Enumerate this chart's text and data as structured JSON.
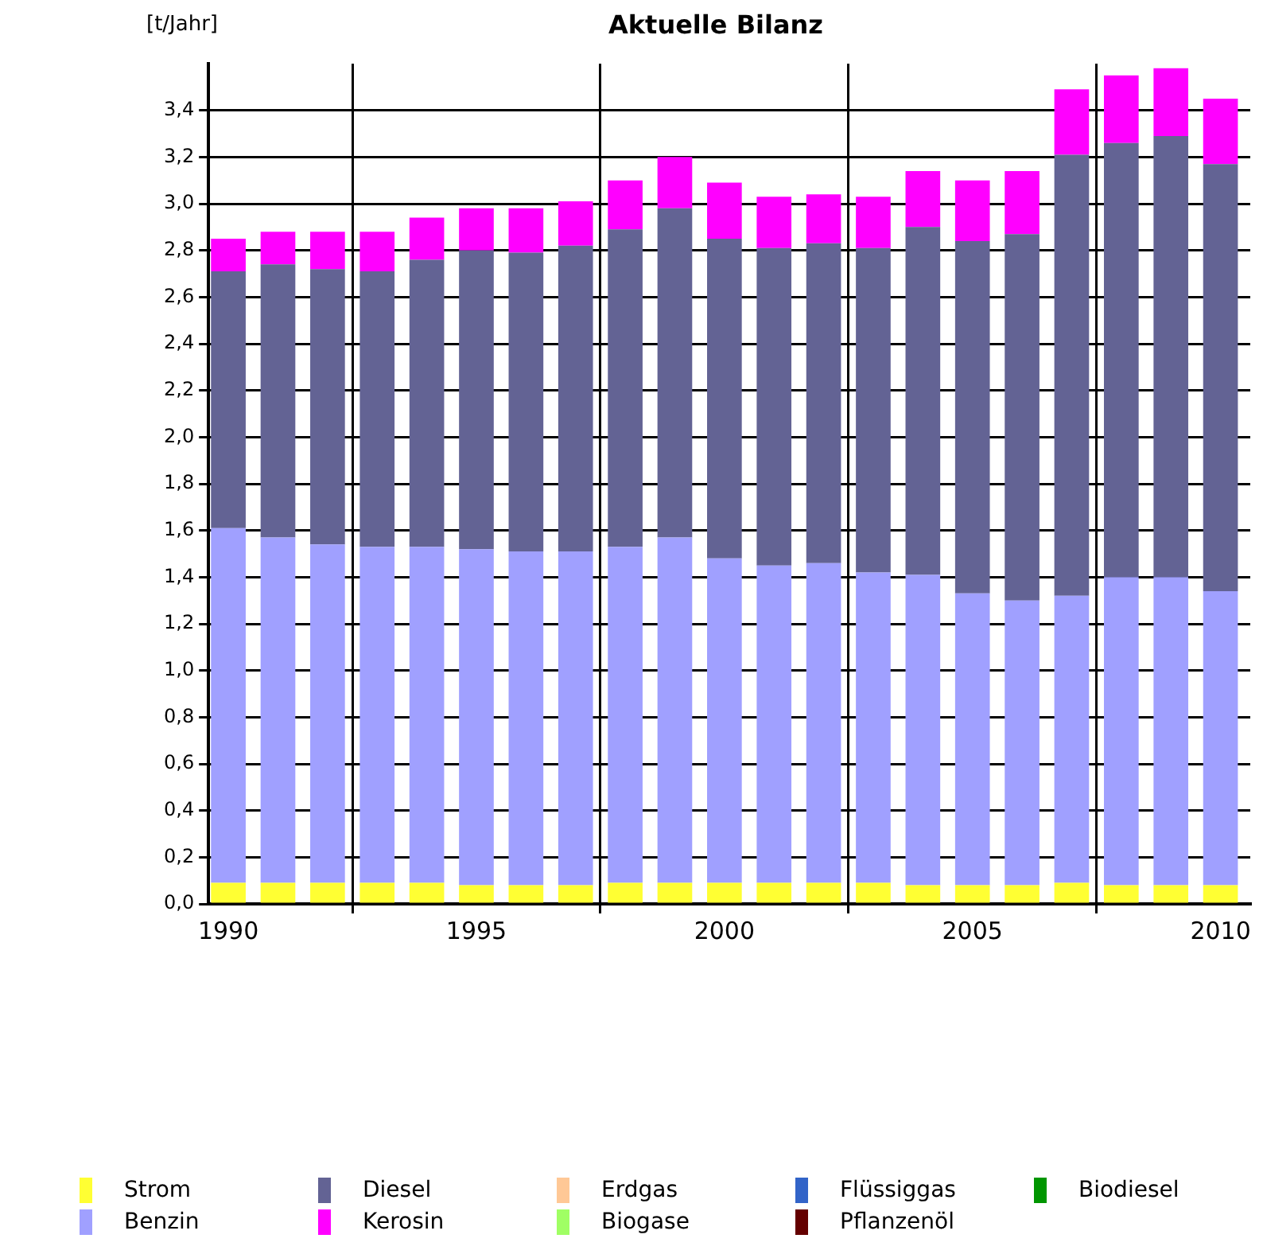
{
  "chart_data": {
    "type": "bar",
    "title": "Aktuelle Bilanz",
    "ylabel": "[t/Jahr]",
    "stacked": true,
    "x": [
      1990,
      1991,
      1992,
      1993,
      1994,
      1995,
      1996,
      1997,
      1998,
      1999,
      2000,
      2001,
      2002,
      2003,
      2004,
      2005,
      2006,
      2007,
      2008,
      2009,
      2010
    ],
    "xlim": [
      1989.6,
      2010.6
    ],
    "xticks": [
      1990,
      1995,
      2000,
      2005,
      2010
    ],
    "ylim": [
      0,
      3.6
    ],
    "yticks": [
      {
        "value": 0,
        "label": "0,0"
      },
      {
        "value": 0.2,
        "label": "0,2"
      },
      {
        "value": 0.4,
        "label": "0,4"
      },
      {
        "value": 0.6,
        "label": "0,6"
      },
      {
        "value": 0.8,
        "label": "0,8"
      },
      {
        "value": 1,
        "label": "1,0"
      },
      {
        "value": 1.2,
        "label": "1,2"
      },
      {
        "value": 1.4,
        "label": "1,4"
      },
      {
        "value": 1.6,
        "label": "1,6"
      },
      {
        "value": 1.8,
        "label": "1,8"
      },
      {
        "value": 2,
        "label": "2,0"
      },
      {
        "value": 2.2,
        "label": "2,2"
      },
      {
        "value": 2.4,
        "label": "2,4"
      },
      {
        "value": 2.6,
        "label": "2,6"
      },
      {
        "value": 2.8,
        "label": "2,8"
      },
      {
        "value": 3,
        "label": "3,0"
      },
      {
        "value": 3.2,
        "label": "3,2"
      },
      {
        "value": 3.4,
        "label": "3,4"
      }
    ],
    "grid": true,
    "legend": "bottom",
    "series": [
      {
        "name": "Strom",
        "color": "#ffff33",
        "values": [
          0.09,
          0.09,
          0.09,
          0.09,
          0.09,
          0.08,
          0.08,
          0.08,
          0.09,
          0.09,
          0.09,
          0.09,
          0.09,
          0.09,
          0.08,
          0.08,
          0.08,
          0.09,
          0.08,
          0.08,
          0.08
        ]
      },
      {
        "name": "Benzin",
        "color": "#a0a0ff",
        "values": [
          1.52,
          1.48,
          1.45,
          1.44,
          1.44,
          1.44,
          1.43,
          1.43,
          1.44,
          1.48,
          1.39,
          1.36,
          1.37,
          1.33,
          1.33,
          1.25,
          1.22,
          1.23,
          1.32,
          1.32,
          1.26
        ]
      },
      {
        "name": "Diesel",
        "color": "#636394",
        "values": [
          1.1,
          1.17,
          1.18,
          1.18,
          1.23,
          1.28,
          1.28,
          1.31,
          1.36,
          1.41,
          1.37,
          1.36,
          1.37,
          1.39,
          1.49,
          1.51,
          1.57,
          1.89,
          1.86,
          1.89,
          1.83
        ]
      },
      {
        "name": "Kerosin",
        "color": "#ff00ff",
        "values": [
          0.14,
          0.14,
          0.16,
          0.17,
          0.18,
          0.18,
          0.19,
          0.19,
          0.21,
          0.22,
          0.24,
          0.22,
          0.21,
          0.22,
          0.24,
          0.26,
          0.27,
          0.28,
          0.29,
          0.29,
          0.28
        ]
      },
      {
        "name": "Erdgas",
        "color": "#ffc896",
        "values": [
          0,
          0,
          0,
          0,
          0,
          0,
          0,
          0,
          0,
          0,
          0,
          0,
          0,
          0,
          0,
          0,
          0,
          0,
          0,
          0,
          0
        ]
      },
      {
        "name": "Biogase",
        "color": "#a0ff64",
        "values": [
          0,
          0,
          0,
          0,
          0,
          0,
          0,
          0,
          0,
          0,
          0,
          0,
          0,
          0,
          0,
          0,
          0,
          0,
          0,
          0,
          0
        ]
      },
      {
        "name": "Flüssiggas",
        "color": "#3264c8",
        "values": [
          0,
          0,
          0,
          0,
          0,
          0,
          0,
          0,
          0,
          0,
          0,
          0,
          0,
          0,
          0,
          0,
          0,
          0,
          0,
          0,
          0
        ]
      },
      {
        "name": "Pflanzenöl",
        "color": "#640000",
        "values": [
          0,
          0,
          0,
          0,
          0,
          0,
          0,
          0,
          0,
          0,
          0,
          0,
          0,
          0,
          0,
          0,
          0,
          0,
          0,
          0,
          0
        ]
      },
      {
        "name": "Biodiesel",
        "color": "#009600",
        "values": [
          0,
          0,
          0,
          0,
          0,
          0,
          0,
          0,
          0,
          0,
          0,
          0,
          0,
          0,
          0,
          0,
          0,
          0,
          0,
          0,
          0
        ]
      }
    ]
  }
}
